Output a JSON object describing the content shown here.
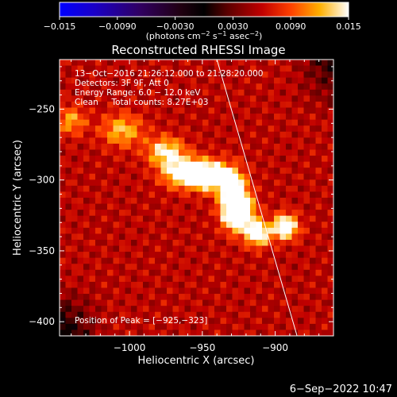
{
  "chart_data": {
    "type": "heatmap",
    "title": "Reconstructed RHESSI Image",
    "xlabel": "Heliocentric X (arcsec)",
    "ylabel": "Heliocentric Y (arcsec)",
    "xlim": [
      -1048,
      -860
    ],
    "ylim": [
      -410,
      -215
    ],
    "xticks": [
      -1000,
      -950,
      -900
    ],
    "yticks": [
      -250,
      -300,
      -350,
      -400
    ],
    "xtick_labels": [
      "−1000",
      "−950",
      "−900"
    ],
    "ytick_labels": [
      "−250",
      "−300",
      "−350",
      "−400"
    ],
    "colorbar": {
      "range": [
        -0.015,
        0.015
      ],
      "ticks": [
        -0.015,
        -0.009,
        -0.003,
        0.003,
        0.009,
        0.015
      ],
      "tick_labels": [
        "−0.015",
        "−0.0090",
        "−0.0030",
        "0.0030",
        "0.0090",
        "0.015"
      ],
      "unit_label_parts": [
        "(photons cm",
        "−2",
        " s",
        "−1",
        " asec",
        "−2",
        ")"
      ]
    },
    "annotations": [
      "13−Oct−2016 21:26:12.000 to 21:28:20.000",
      "Detectors: 3F 9F, Att 0",
      "Energy Range: 6.0 − 12.0 keV",
      "Clean     Total counts: 8.27E+03"
    ],
    "peak_label": "Position of Peak = [−925,−323]",
    "peak": [
      -925,
      -323
    ],
    "limb_line": [
      [
        -940,
        -215
      ],
      [
        -885,
        -410
      ]
    ],
    "sources": [
      {
        "x": -960,
        "y": -295,
        "intensity": 0.014,
        "sx": 11,
        "sy": 7
      },
      {
        "x": -942,
        "y": -298,
        "intensity": 0.012,
        "sx": 8,
        "sy": 7
      },
      {
        "x": -928,
        "y": -312,
        "intensity": 0.014,
        "sx": 6,
        "sy": 12
      },
      {
        "x": -925,
        "y": -323,
        "intensity": 0.015,
        "sx": 7,
        "sy": 8
      },
      {
        "x": -912,
        "y": -338,
        "intensity": 0.012,
        "sx": 6,
        "sy": 6
      },
      {
        "x": -893,
        "y": -333,
        "intensity": 0.013,
        "sx": 6,
        "sy": 6
      },
      {
        "x": -1005,
        "y": -265,
        "intensity": 0.007,
        "sx": 10,
        "sy": 8
      },
      {
        "x": -975,
        "y": -280,
        "intensity": 0.009,
        "sx": 9,
        "sy": 7
      },
      {
        "x": -1040,
        "y": -258,
        "intensity": 0.006,
        "sx": 7,
        "sy": 7
      }
    ]
  },
  "footer": {
    "datetime": "6−Sep−2022 10:47"
  }
}
